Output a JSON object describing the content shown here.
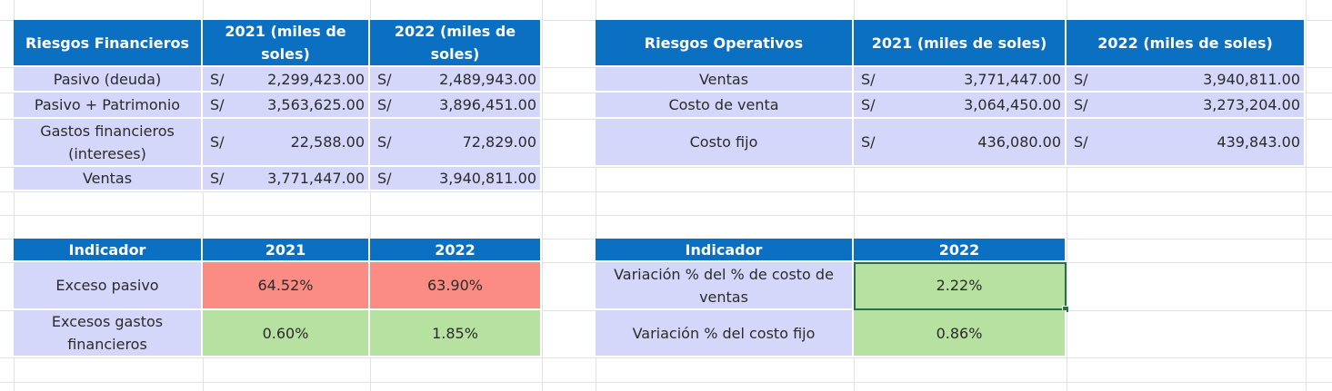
{
  "financieros": {
    "headers": [
      "Riesgos Financieros",
      "2021 (miles de soles)",
      "2022 (miles de soles)"
    ],
    "rows": [
      {
        "label": "Pasivo (deuda)",
        "cur1": "S/",
        "v2021": "2,299,423.00",
        "cur2": "S/",
        "v2022": "2,489,943.00"
      },
      {
        "label": "Pasivo + Patrimonio",
        "cur1": "S/",
        "v2021": "3,563,625.00",
        "cur2": "S/",
        "v2022": "3,896,451.00"
      },
      {
        "label": "Gastos financieros (intereses)",
        "cur1": "S/",
        "v2021": "22,588.00",
        "cur2": "S/",
        "v2022": "72,829.00"
      },
      {
        "label": "Ventas",
        "cur1": "S/",
        "v2021": "3,771,447.00",
        "cur2": "S/",
        "v2022": "3,940,811.00"
      }
    ]
  },
  "operativos": {
    "headers": [
      "Riesgos Operativos",
      "2021 (miles de soles)",
      "2022 (miles de soles)"
    ],
    "rows": [
      {
        "label": "Ventas",
        "cur1": "S/",
        "v2021": "3,771,447.00",
        "cur2": "S/",
        "v2022": "3,940,811.00"
      },
      {
        "label": "Costo de venta",
        "cur1": "S/",
        "v2021": "3,064,450.00",
        "cur2": "S/",
        "v2022": "3,273,204.00"
      },
      {
        "label": "Costo fijo",
        "cur1": "S/",
        "v2021": "436,080.00",
        "cur2": "S/",
        "v2022": "439,843.00"
      }
    ]
  },
  "indicadores_fin": {
    "headers": [
      "Indicador",
      "2021",
      "2022"
    ],
    "rows": [
      {
        "label": "Exceso pasivo",
        "v2021": "64.52%",
        "v2022": "63.90%",
        "status": "red"
      },
      {
        "label": "Excesos gastos financieros",
        "v2021": "0.60%",
        "v2022": "1.85%",
        "status": "green"
      }
    ]
  },
  "indicadores_op": {
    "headers": [
      "Indicador",
      "2022"
    ],
    "rows": [
      {
        "label": "Variación % del % de costo de ventas",
        "v2022": "2.22%",
        "status": "green"
      },
      {
        "label": "Variación % del costo fijo",
        "v2022": "0.86%",
        "status": "green"
      }
    ]
  },
  "colors": {
    "header_bg": "#0b6fc2",
    "row_bg": "#d4d7fa",
    "bad": "#fb8c84",
    "good": "#b7e1a1",
    "selection": "#217346"
  }
}
